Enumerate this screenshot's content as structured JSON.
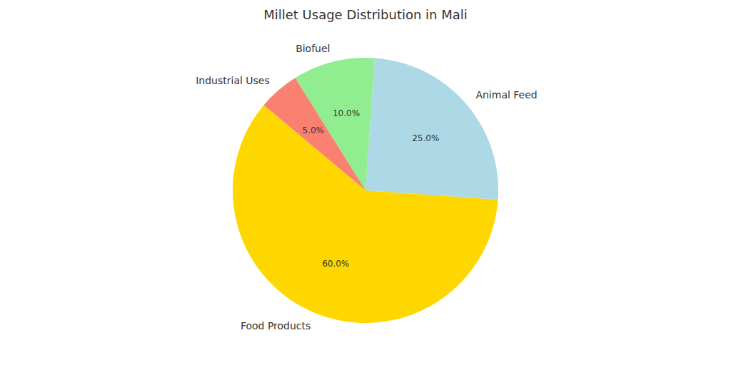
{
  "chart_data": {
    "type": "pie",
    "title": "Millet Usage Distribution in Mali",
    "categories": [
      "Food Products",
      "Animal Feed",
      "Biofuel",
      "Industrial Uses"
    ],
    "values": [
      60,
      25,
      10,
      5
    ],
    "value_labels": [
      "60.0%",
      "25.0%",
      "10.0%",
      "5.0%"
    ],
    "colors": [
      "#ffd700",
      "#add8e6",
      "#90ee90",
      "#fa8072"
    ],
    "data_labels": true
  }
}
